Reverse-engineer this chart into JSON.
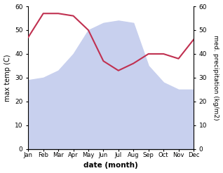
{
  "months": [
    "Jan",
    "Feb",
    "Mar",
    "Apr",
    "May",
    "Jun",
    "Jul",
    "Aug",
    "Sep",
    "Oct",
    "Nov",
    "Dec"
  ],
  "temperature": [
    29,
    30,
    33,
    40,
    50,
    53,
    54,
    53,
    35,
    28,
    25,
    25
  ],
  "precipitation": [
    47,
    57,
    57,
    56,
    50,
    37,
    33,
    36,
    40,
    40,
    38,
    46
  ],
  "temp_fill_color": "#c8d0ee",
  "precip_color": "#c03050",
  "xlabel": "date (month)",
  "ylabel_left": "max temp (C)",
  "ylabel_right": "med. precipitation (kg/m2)",
  "ylim_left": [
    0,
    60
  ],
  "ylim_right": [
    0,
    60
  ],
  "yticks_left": [
    0,
    10,
    20,
    30,
    40,
    50,
    60
  ],
  "yticks_right": [
    0,
    10,
    20,
    30,
    40,
    50,
    60
  ],
  "background_color": "#ffffff"
}
